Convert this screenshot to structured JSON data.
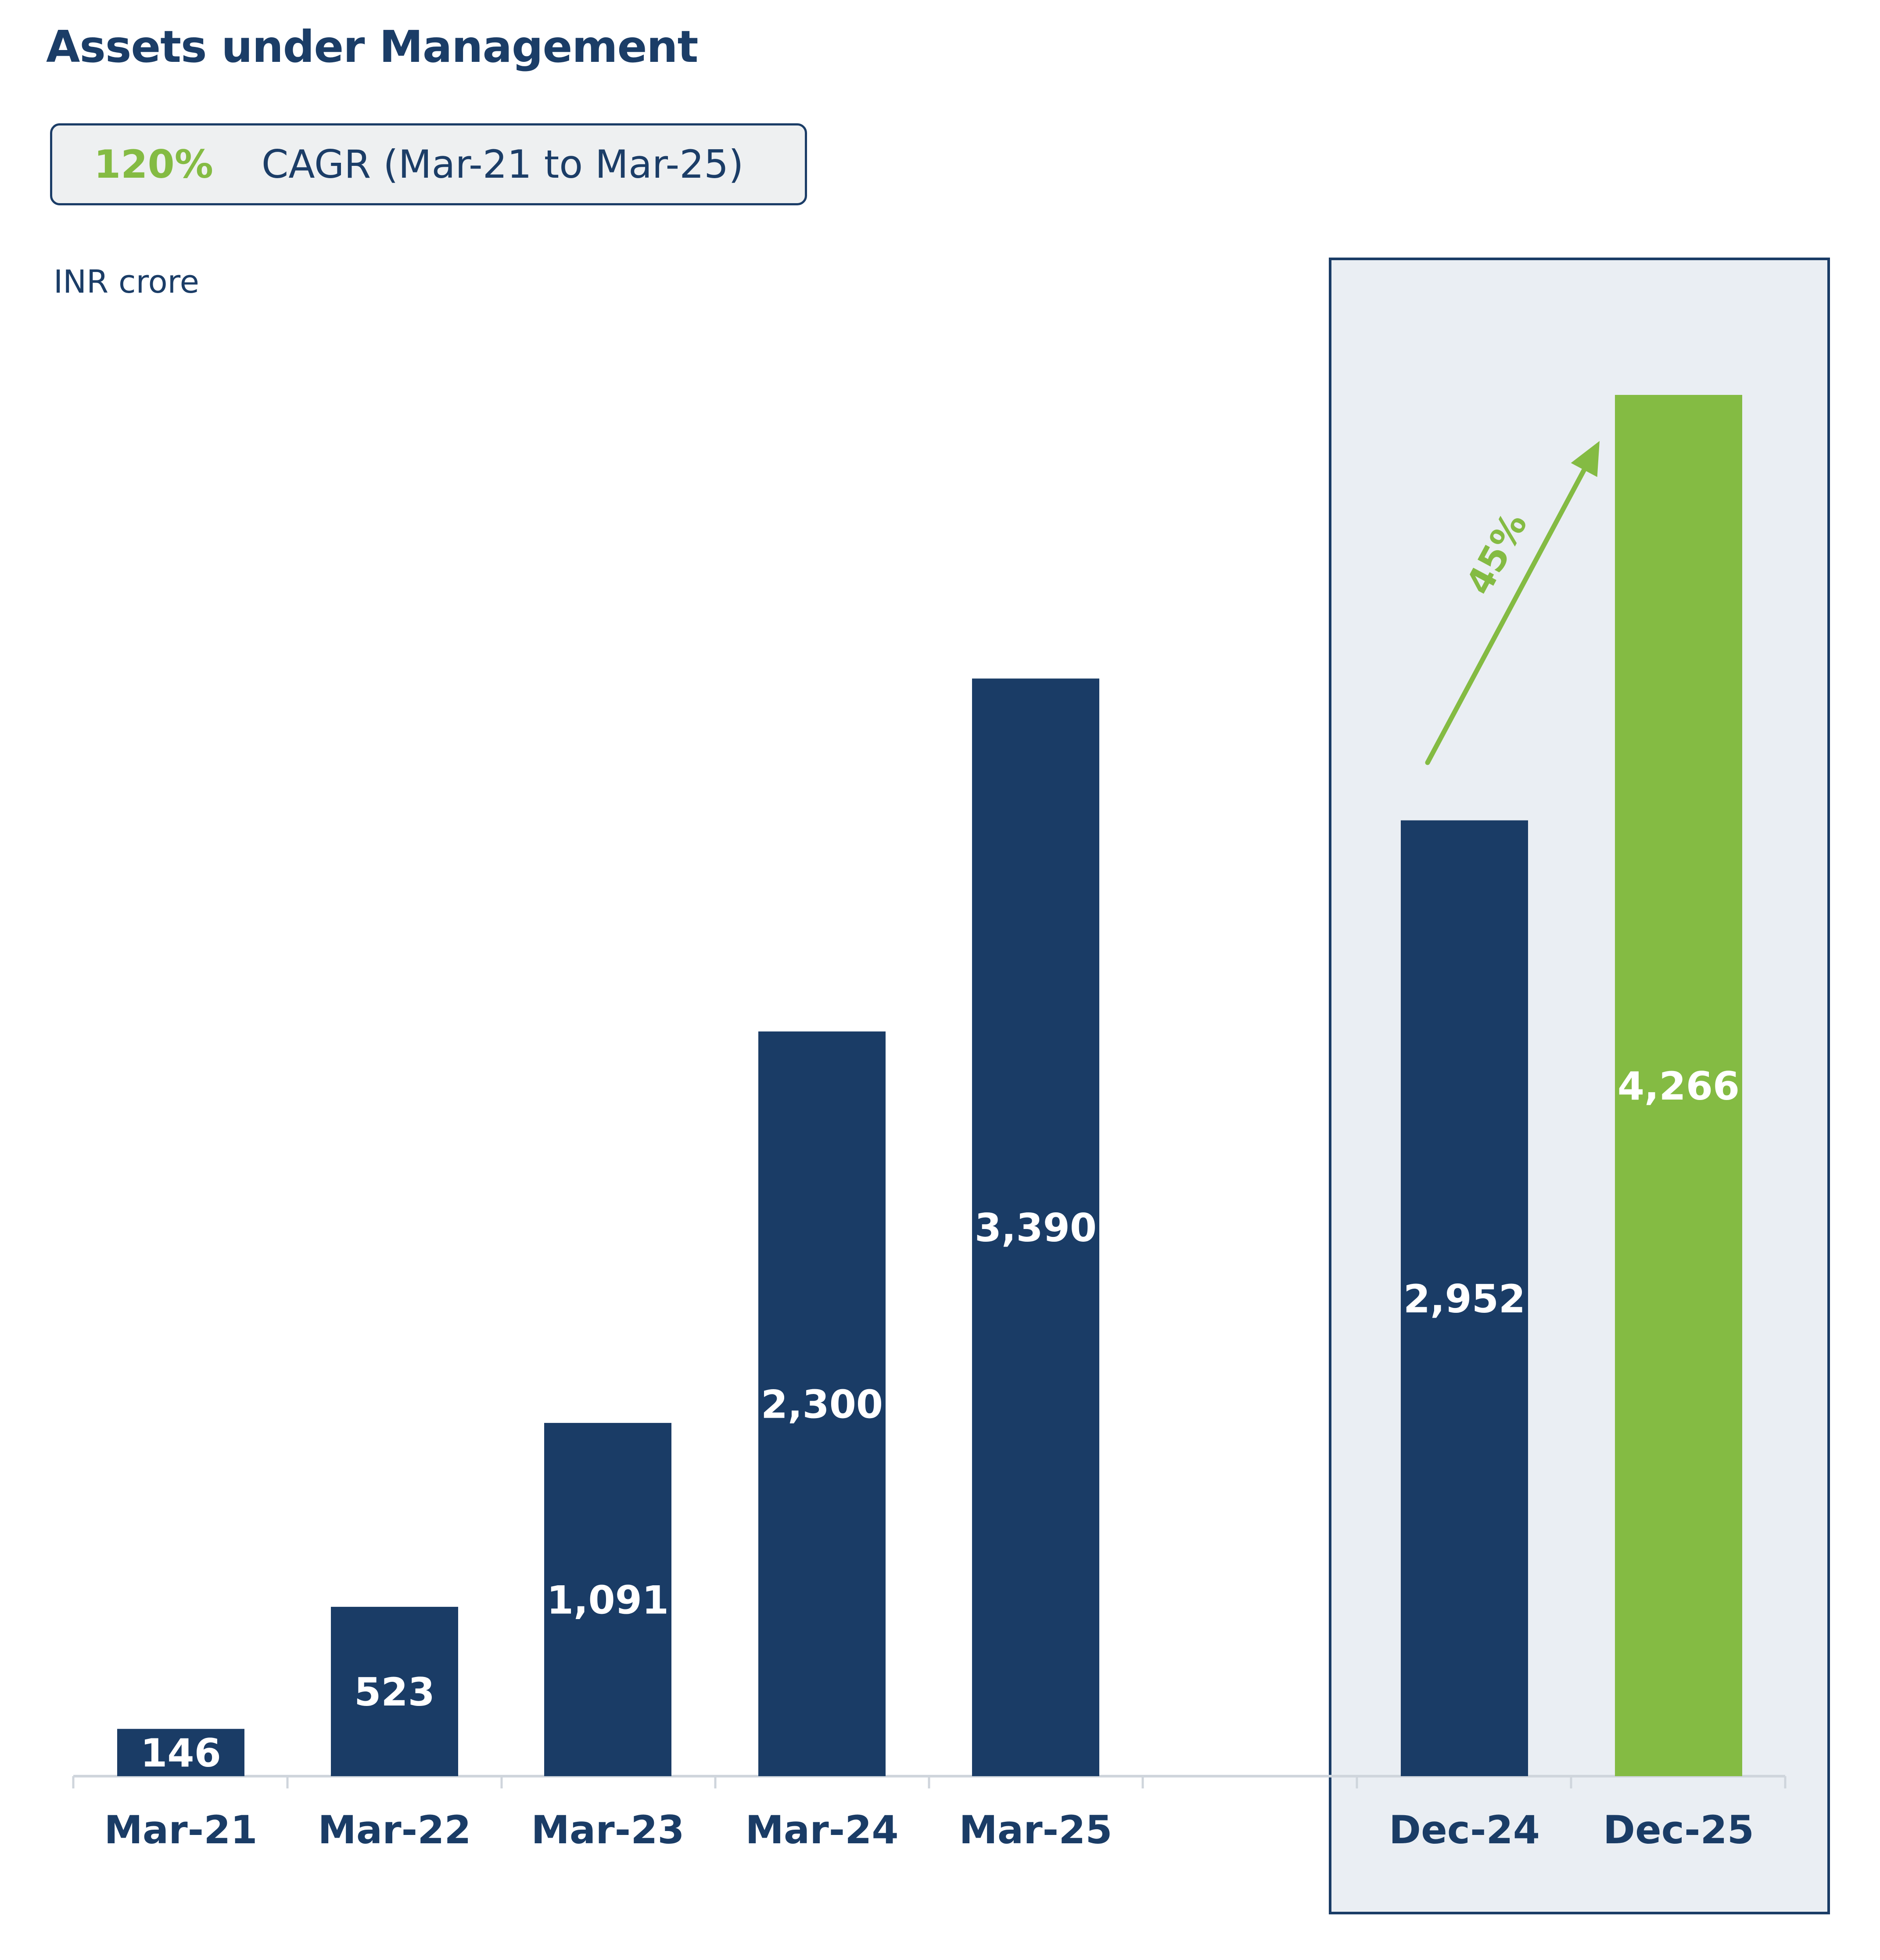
{
  "title": "Assets under Management",
  "cagr": {
    "value": "120%",
    "text": "CAGR (Mar-21 to Mar-25)"
  },
  "unit_label": "INR crore",
  "colors": {
    "navy": "#1a3c66",
    "green": "#84bb43",
    "highlight_bg": "#eaeef3",
    "axis": "#cfd5dc"
  },
  "chart_data": {
    "type": "bar",
    "title": "Assets under Management",
    "ylabel": "INR crore",
    "xlabel": "",
    "ylim": [
      0,
      4266
    ],
    "categories": [
      "Mar-21",
      "Mar-22",
      "Mar-23",
      "Mar-24",
      "Mar-25",
      "Dec-24",
      "Dec-25"
    ],
    "values": [
      146,
      523,
      1091,
      2300,
      3390,
      2952,
      4266
    ],
    "labels": [
      "146",
      "523",
      "1,091",
      "2,300",
      "3,390",
      "2,952",
      "4,266"
    ],
    "highlighted_group": [
      "Dec-24",
      "Dec-25"
    ],
    "annotation": {
      "text": "45%",
      "from": "Dec-24",
      "to": "Dec-25"
    }
  }
}
